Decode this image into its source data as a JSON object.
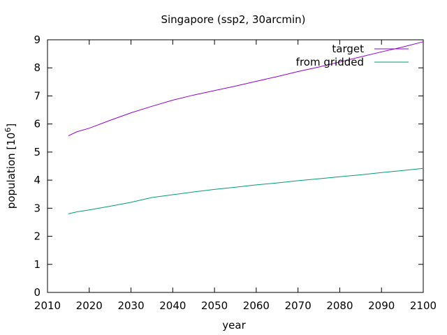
{
  "chart_data": {
    "type": "line",
    "title": "Singapore (ssp2, 30arcmin)",
    "xlabel": "year",
    "ylabel_prefix": "population [10",
    "ylabel_exp": "6",
    "ylabel_suffix": "]",
    "xlim": [
      2010,
      2100
    ],
    "ylim": [
      0,
      9
    ],
    "xticks": [
      2010,
      2020,
      2030,
      2040,
      2050,
      2060,
      2070,
      2080,
      2090,
      2100
    ],
    "yticks": [
      0,
      1,
      2,
      3,
      4,
      5,
      6,
      7,
      8,
      9
    ],
    "legend_position": "top-right",
    "series": [
      {
        "name": "target",
        "color": "#9400d3",
        "x": [
          2015,
          2017,
          2020,
          2025,
          2030,
          2035,
          2040,
          2045,
          2050,
          2055,
          2060,
          2065,
          2070,
          2075,
          2080,
          2085,
          2090,
          2095,
          2100
        ],
        "y": [
          5.58,
          5.72,
          5.85,
          6.13,
          6.4,
          6.63,
          6.85,
          7.03,
          7.19,
          7.35,
          7.52,
          7.69,
          7.87,
          8.03,
          8.21,
          8.39,
          8.57,
          8.74,
          8.93
        ]
      },
      {
        "name": "from gridded",
        "color": "#009e73",
        "x": [
          2015,
          2017,
          2020,
          2025,
          2030,
          2035,
          2040,
          2045,
          2050,
          2055,
          2060,
          2065,
          2070,
          2075,
          2080,
          2085,
          2090,
          2095,
          2100
        ],
        "y": [
          2.8,
          2.87,
          2.94,
          3.07,
          3.21,
          3.38,
          3.48,
          3.58,
          3.67,
          3.75,
          3.83,
          3.9,
          3.98,
          4.05,
          4.12,
          4.19,
          4.27,
          4.34,
          4.42
        ]
      }
    ]
  }
}
